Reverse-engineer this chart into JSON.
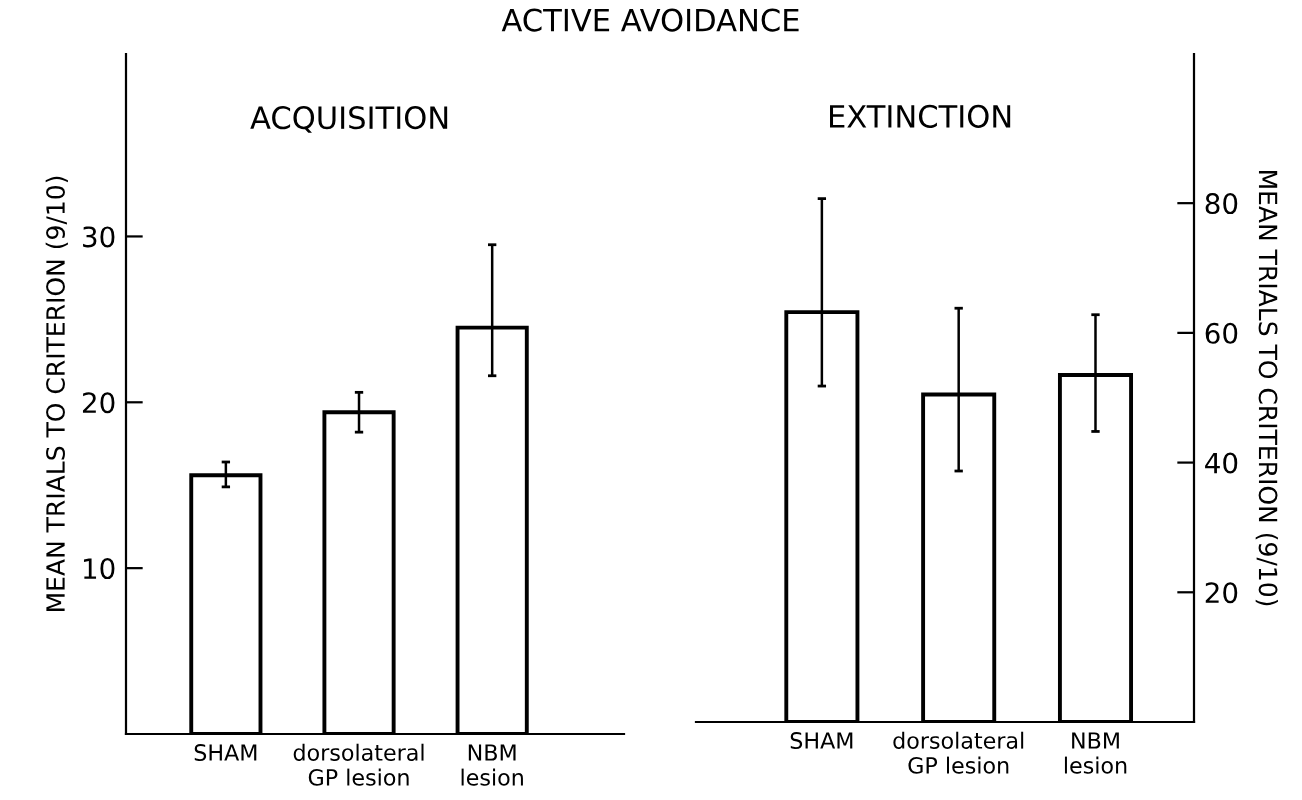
{
  "chart_data": [
    {
      "type": "bar",
      "title": "ACQUISITION",
      "annotations": [
        "ACTIVE AVOIDANCE"
      ],
      "ylabel": "MEAN TRIALS TO CRITERION (9/10)",
      "categories": [
        "SHAM",
        "dorsolateral\nGP lesion",
        "NBM\nlesion"
      ],
      "series": [
        {
          "color": "#ffffff",
          "values": [
            15.6,
            19.4,
            24.5
          ],
          "errors": [
            [
              14.9,
              16.4
            ],
            [
              18.2,
              20.6
            ],
            [
              21.6,
              29.5
            ]
          ]
        }
      ],
      "ylim": [
        0,
        41
      ],
      "yticks": [
        10,
        20,
        30
      ],
      "grid": false
    },
    {
      "type": "bar",
      "title": "EXTINCTION",
      "y2label": "MEAN TRIALS TO CRITERION (9/10)",
      "categories": [
        "SHAM",
        "dorsolateral\nGP lesion",
        "NBM\nlesion"
      ],
      "series": [
        {
          "color": "#ffffff",
          "axis": "y2",
          "values": [
            63.2,
            50.5,
            53.5
          ],
          "errors": [
            [
              51.8,
              80.7
            ],
            [
              38.7,
              63.8
            ],
            [
              44.8,
              62.8
            ]
          ]
        }
      ],
      "y2lim": [
        0,
        103
      ],
      "y2ticks": [
        20,
        40,
        60,
        80
      ],
      "grid": false
    }
  ]
}
